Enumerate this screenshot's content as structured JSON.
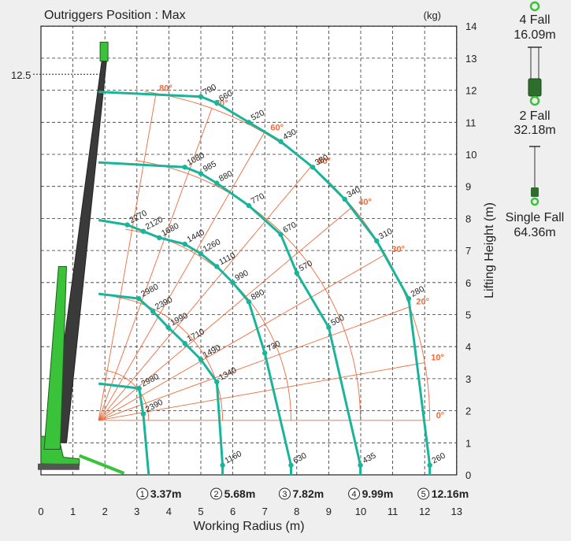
{
  "chart_data": {
    "type": "load_chart",
    "title": "Outriggers Position : Max",
    "unit_label": "(kg)",
    "xlabel": "Working Radius (m)",
    "ylabel": "Lifting Height (m)",
    "xlim": [
      0,
      13
    ],
    "ylim": [
      0,
      14
    ],
    "x_ticks": [
      "0",
      "1",
      "2",
      "3",
      "4",
      "5",
      "6",
      "7",
      "8",
      "9",
      "10",
      "11",
      "12",
      "13"
    ],
    "y_ticks": [
      "0",
      "1",
      "2",
      "3",
      "4",
      "5",
      "6",
      "7",
      "8",
      "9",
      "10",
      "11",
      "12",
      "13",
      "14"
    ],
    "grid": true,
    "max_height_mark": {
      "value": 12.5,
      "label": "12.5"
    },
    "boom_angles": [
      {
        "deg": 0,
        "label": "0°"
      },
      {
        "deg": 10,
        "label": "10°"
      },
      {
        "deg": 20,
        "label": "20°"
      },
      {
        "deg": 30,
        "label": "30°"
      },
      {
        "deg": 40,
        "label": "40°"
      },
      {
        "deg": 50,
        "label": "50°"
      },
      {
        "deg": 60,
        "label": "60°"
      },
      {
        "deg": 70,
        "label": "70°"
      },
      {
        "deg": 80,
        "label": "80°"
      }
    ],
    "booms": [
      {
        "section": "1",
        "length_label": "3.37m",
        "max_radius": 3.37,
        "points": [
          {
            "x": 3.07,
            "y": 2.7,
            "load": "2980"
          },
          {
            "x": 3.2,
            "y": 1.9,
            "load": "2390"
          }
        ]
      },
      {
        "section": "2",
        "length_label": "5.68m",
        "max_radius": 5.68,
        "points": [
          {
            "x": 3.06,
            "y": 5.5,
            "load": "2980"
          },
          {
            "x": 3.5,
            "y": 5.1,
            "load": "2390"
          },
          {
            "x": 3.98,
            "y": 4.6,
            "load": "1990"
          },
          {
            "x": 4.5,
            "y": 4.1,
            "load": "1710"
          },
          {
            "x": 5.0,
            "y": 3.6,
            "load": "1490"
          },
          {
            "x": 5.5,
            "y": 2.9,
            "load": "1340"
          },
          {
            "x": 5.68,
            "y": 0.3,
            "load": "1160"
          }
        ]
      },
      {
        "section": "3",
        "length_label": "7.82m",
        "max_radius": 7.82,
        "points": [
          {
            "x": 2.7,
            "y": 7.8,
            "load": "2270"
          },
          {
            "x": 3.2,
            "y": 7.6,
            "load": "2120"
          },
          {
            "x": 3.7,
            "y": 7.4,
            "load": "1680"
          },
          {
            "x": 4.5,
            "y": 7.2,
            "load": "1440"
          },
          {
            "x": 5.0,
            "y": 6.9,
            "load": "1260"
          },
          {
            "x": 5.5,
            "y": 6.5,
            "load": "1110"
          },
          {
            "x": 6.0,
            "y": 6.0,
            "load": "990"
          },
          {
            "x": 6.5,
            "y": 5.4,
            "load": "880"
          },
          {
            "x": 7.0,
            "y": 3.8,
            "load": "730"
          },
          {
            "x": 7.82,
            "y": 0.3,
            "load": "630"
          }
        ]
      },
      {
        "section": "4",
        "length_label": "9.99m",
        "max_radius": 9.99,
        "points": [
          {
            "x": 4.5,
            "y": 9.6,
            "load": "1080"
          },
          {
            "x": 5.0,
            "y": 9.4,
            "load": "985"
          },
          {
            "x": 5.5,
            "y": 9.1,
            "load": "880"
          },
          {
            "x": 6.5,
            "y": 8.4,
            "load": "770"
          },
          {
            "x": 7.5,
            "y": 7.5,
            "load": "670"
          },
          {
            "x": 8.0,
            "y": 6.3,
            "load": "570"
          },
          {
            "x": 9.0,
            "y": 4.6,
            "load": "500"
          },
          {
            "x": 9.99,
            "y": 0.3,
            "load": "435"
          }
        ]
      },
      {
        "section": "5",
        "length_label": "12.16m",
        "max_radius": 12.16,
        "points": [
          {
            "x": 5.0,
            "y": 11.8,
            "load": "790"
          },
          {
            "x": 5.5,
            "y": 11.6,
            "load": "660"
          },
          {
            "x": 6.5,
            "y": 11.0,
            "load": "520"
          },
          {
            "x": 7.5,
            "y": 10.4,
            "load": "430"
          },
          {
            "x": 8.5,
            "y": 9.6,
            "load": "380"
          },
          {
            "x": 9.5,
            "y": 8.6,
            "load": "340"
          },
          {
            "x": 10.5,
            "y": 7.3,
            "load": "310"
          },
          {
            "x": 11.5,
            "y": 5.5,
            "load": "280"
          },
          {
            "x": 12.16,
            "y": 0.3,
            "load": "260"
          }
        ]
      }
    ]
  },
  "hook_legend": [
    {
      "name": "4 Fall",
      "length": "16.09m"
    },
    {
      "name": "2 Fall",
      "length": "32.18m"
    },
    {
      "name": "Single Fall",
      "length": "64.36m"
    }
  ],
  "colors": {
    "curve": "#19b49a",
    "angle": "#f06a3c",
    "grid": "#333333",
    "crane": "#39c23a"
  }
}
